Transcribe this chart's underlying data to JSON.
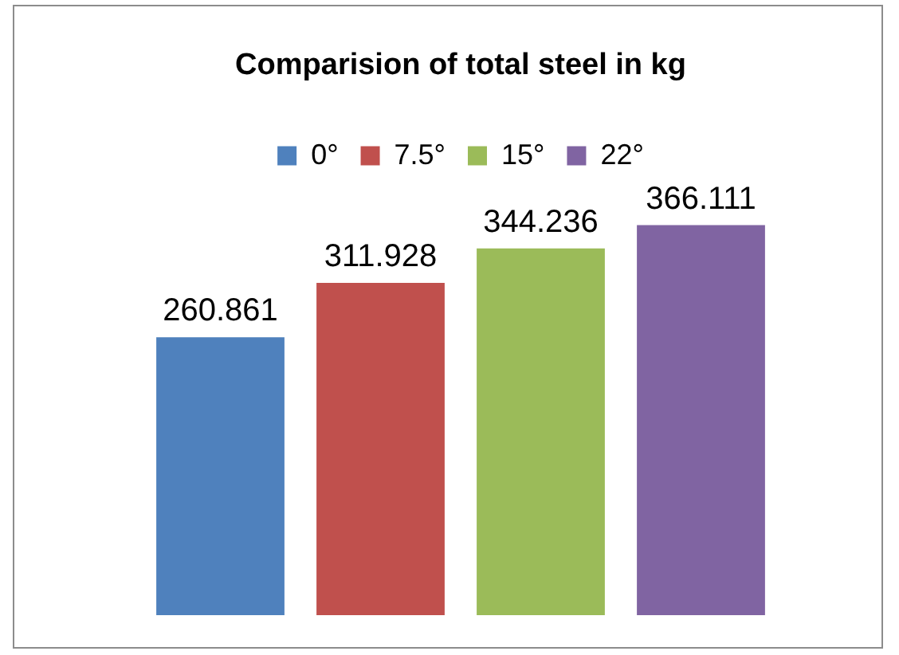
{
  "chart_data": {
    "type": "bar",
    "title": "Comparision of total steel in kg",
    "categories": [
      null
    ],
    "series": [
      {
        "name": "0°",
        "color": "#4f81bd",
        "values": [
          260.861
        ]
      },
      {
        "name": "7.5°",
        "color": "#c0504d",
        "values": [
          311.928
        ]
      },
      {
        "name": "15°",
        "color": "#9bbb59",
        "values": [
          344.236
        ]
      },
      {
        "name": "22°",
        "color": "#8064a2",
        "values": [
          366.111
        ]
      }
    ],
    "data_labels": true,
    "legend": "top"
  }
}
